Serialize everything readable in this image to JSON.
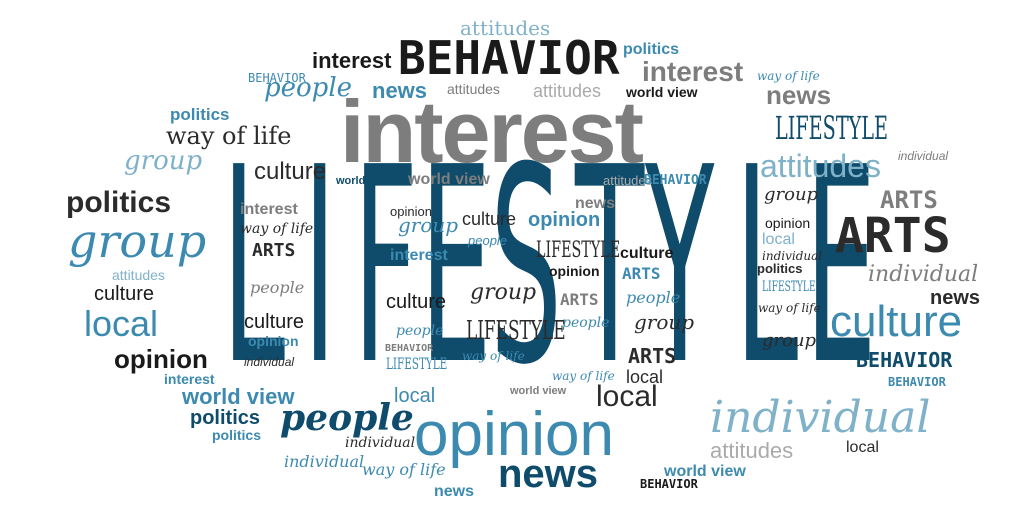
{
  "colors": {
    "dark_blue": "#0f4b6b",
    "mid_blue": "#3d8ab0",
    "light_blue": "#7fb1c9",
    "dark_gray": "#2b2b2b",
    "mid_gray": "#7d7d7d",
    "light_gray": "#aaaaaa",
    "black": "#1a1a1a"
  },
  "headline": {
    "letters": [
      "L",
      "I",
      "F",
      "E",
      "S",
      "T",
      "Y",
      "L",
      "E"
    ]
  },
  "words": [
    {
      "text": "attitudes"
    },
    {
      "text": "BEHAVIOR"
    },
    {
      "text": "politics"
    },
    {
      "text": "interest"
    },
    {
      "text": "BEHAVIOR"
    },
    {
      "text": "people"
    },
    {
      "text": "news"
    },
    {
      "text": "interest"
    },
    {
      "text": "way of life"
    },
    {
      "text": "attitudes"
    },
    {
      "text": "attitudes"
    },
    {
      "text": "world view"
    },
    {
      "text": "news"
    },
    {
      "text": "interest"
    },
    {
      "text": "politics"
    },
    {
      "text": "way of life"
    },
    {
      "text": "LIFESTYLE"
    },
    {
      "text": "group"
    },
    {
      "text": "culture"
    },
    {
      "text": "world view"
    },
    {
      "text": "world view"
    },
    {
      "text": "attitudes"
    },
    {
      "text": "BEHAVIOR"
    },
    {
      "text": "attitudes"
    },
    {
      "text": "individual"
    },
    {
      "text": "politics"
    },
    {
      "text": "interest"
    },
    {
      "text": "opinion"
    },
    {
      "text": "culture"
    },
    {
      "text": "news"
    },
    {
      "text": "opinion"
    },
    {
      "text": "group"
    },
    {
      "text": "ARTS"
    },
    {
      "text": "group"
    },
    {
      "text": "way of life"
    },
    {
      "text": "group"
    },
    {
      "text": "people"
    },
    {
      "text": "opinion"
    },
    {
      "text": "ARTS"
    },
    {
      "text": "ARTS"
    },
    {
      "text": "interest"
    },
    {
      "text": "LIFESTYLE"
    },
    {
      "text": "culture"
    },
    {
      "text": "local"
    },
    {
      "text": "attitudes"
    },
    {
      "text": "opinion"
    },
    {
      "text": "individual"
    },
    {
      "text": "people"
    },
    {
      "text": "ARTS"
    },
    {
      "text": "politics"
    },
    {
      "text": "culture"
    },
    {
      "text": "group"
    },
    {
      "text": "individual"
    },
    {
      "text": "LIFESTYLE"
    },
    {
      "text": "culture"
    },
    {
      "text": "ARTS"
    },
    {
      "text": "news"
    },
    {
      "text": "people"
    },
    {
      "text": "way of life"
    },
    {
      "text": "local"
    },
    {
      "text": "group"
    },
    {
      "text": "culture"
    },
    {
      "text": "people"
    },
    {
      "text": "LIFESTYLE"
    },
    {
      "text": "opinion"
    },
    {
      "text": "people"
    },
    {
      "text": "culture"
    },
    {
      "text": "BEHAVIOR"
    },
    {
      "text": "BEHAVIOR"
    },
    {
      "text": "opinion"
    },
    {
      "text": "group"
    },
    {
      "text": "ARTS"
    },
    {
      "text": "LIFESTYLE"
    },
    {
      "text": "individual"
    },
    {
      "text": "way of life"
    },
    {
      "text": "way of life"
    },
    {
      "text": "local"
    },
    {
      "text": "interest"
    },
    {
      "text": "world view"
    },
    {
      "text": "BEHAVIOR"
    },
    {
      "text": "world view"
    },
    {
      "text": "local"
    },
    {
      "text": "local"
    },
    {
      "text": "politics"
    },
    {
      "text": "people"
    },
    {
      "text": "individual"
    },
    {
      "text": "politics"
    },
    {
      "text": "opinion"
    },
    {
      "text": "individual"
    },
    {
      "text": "attitudes"
    },
    {
      "text": "local"
    },
    {
      "text": "individual"
    },
    {
      "text": "way of life"
    },
    {
      "text": "news"
    },
    {
      "text": "news"
    },
    {
      "text": "world view"
    },
    {
      "text": "BEHAVIOR"
    }
  ]
}
